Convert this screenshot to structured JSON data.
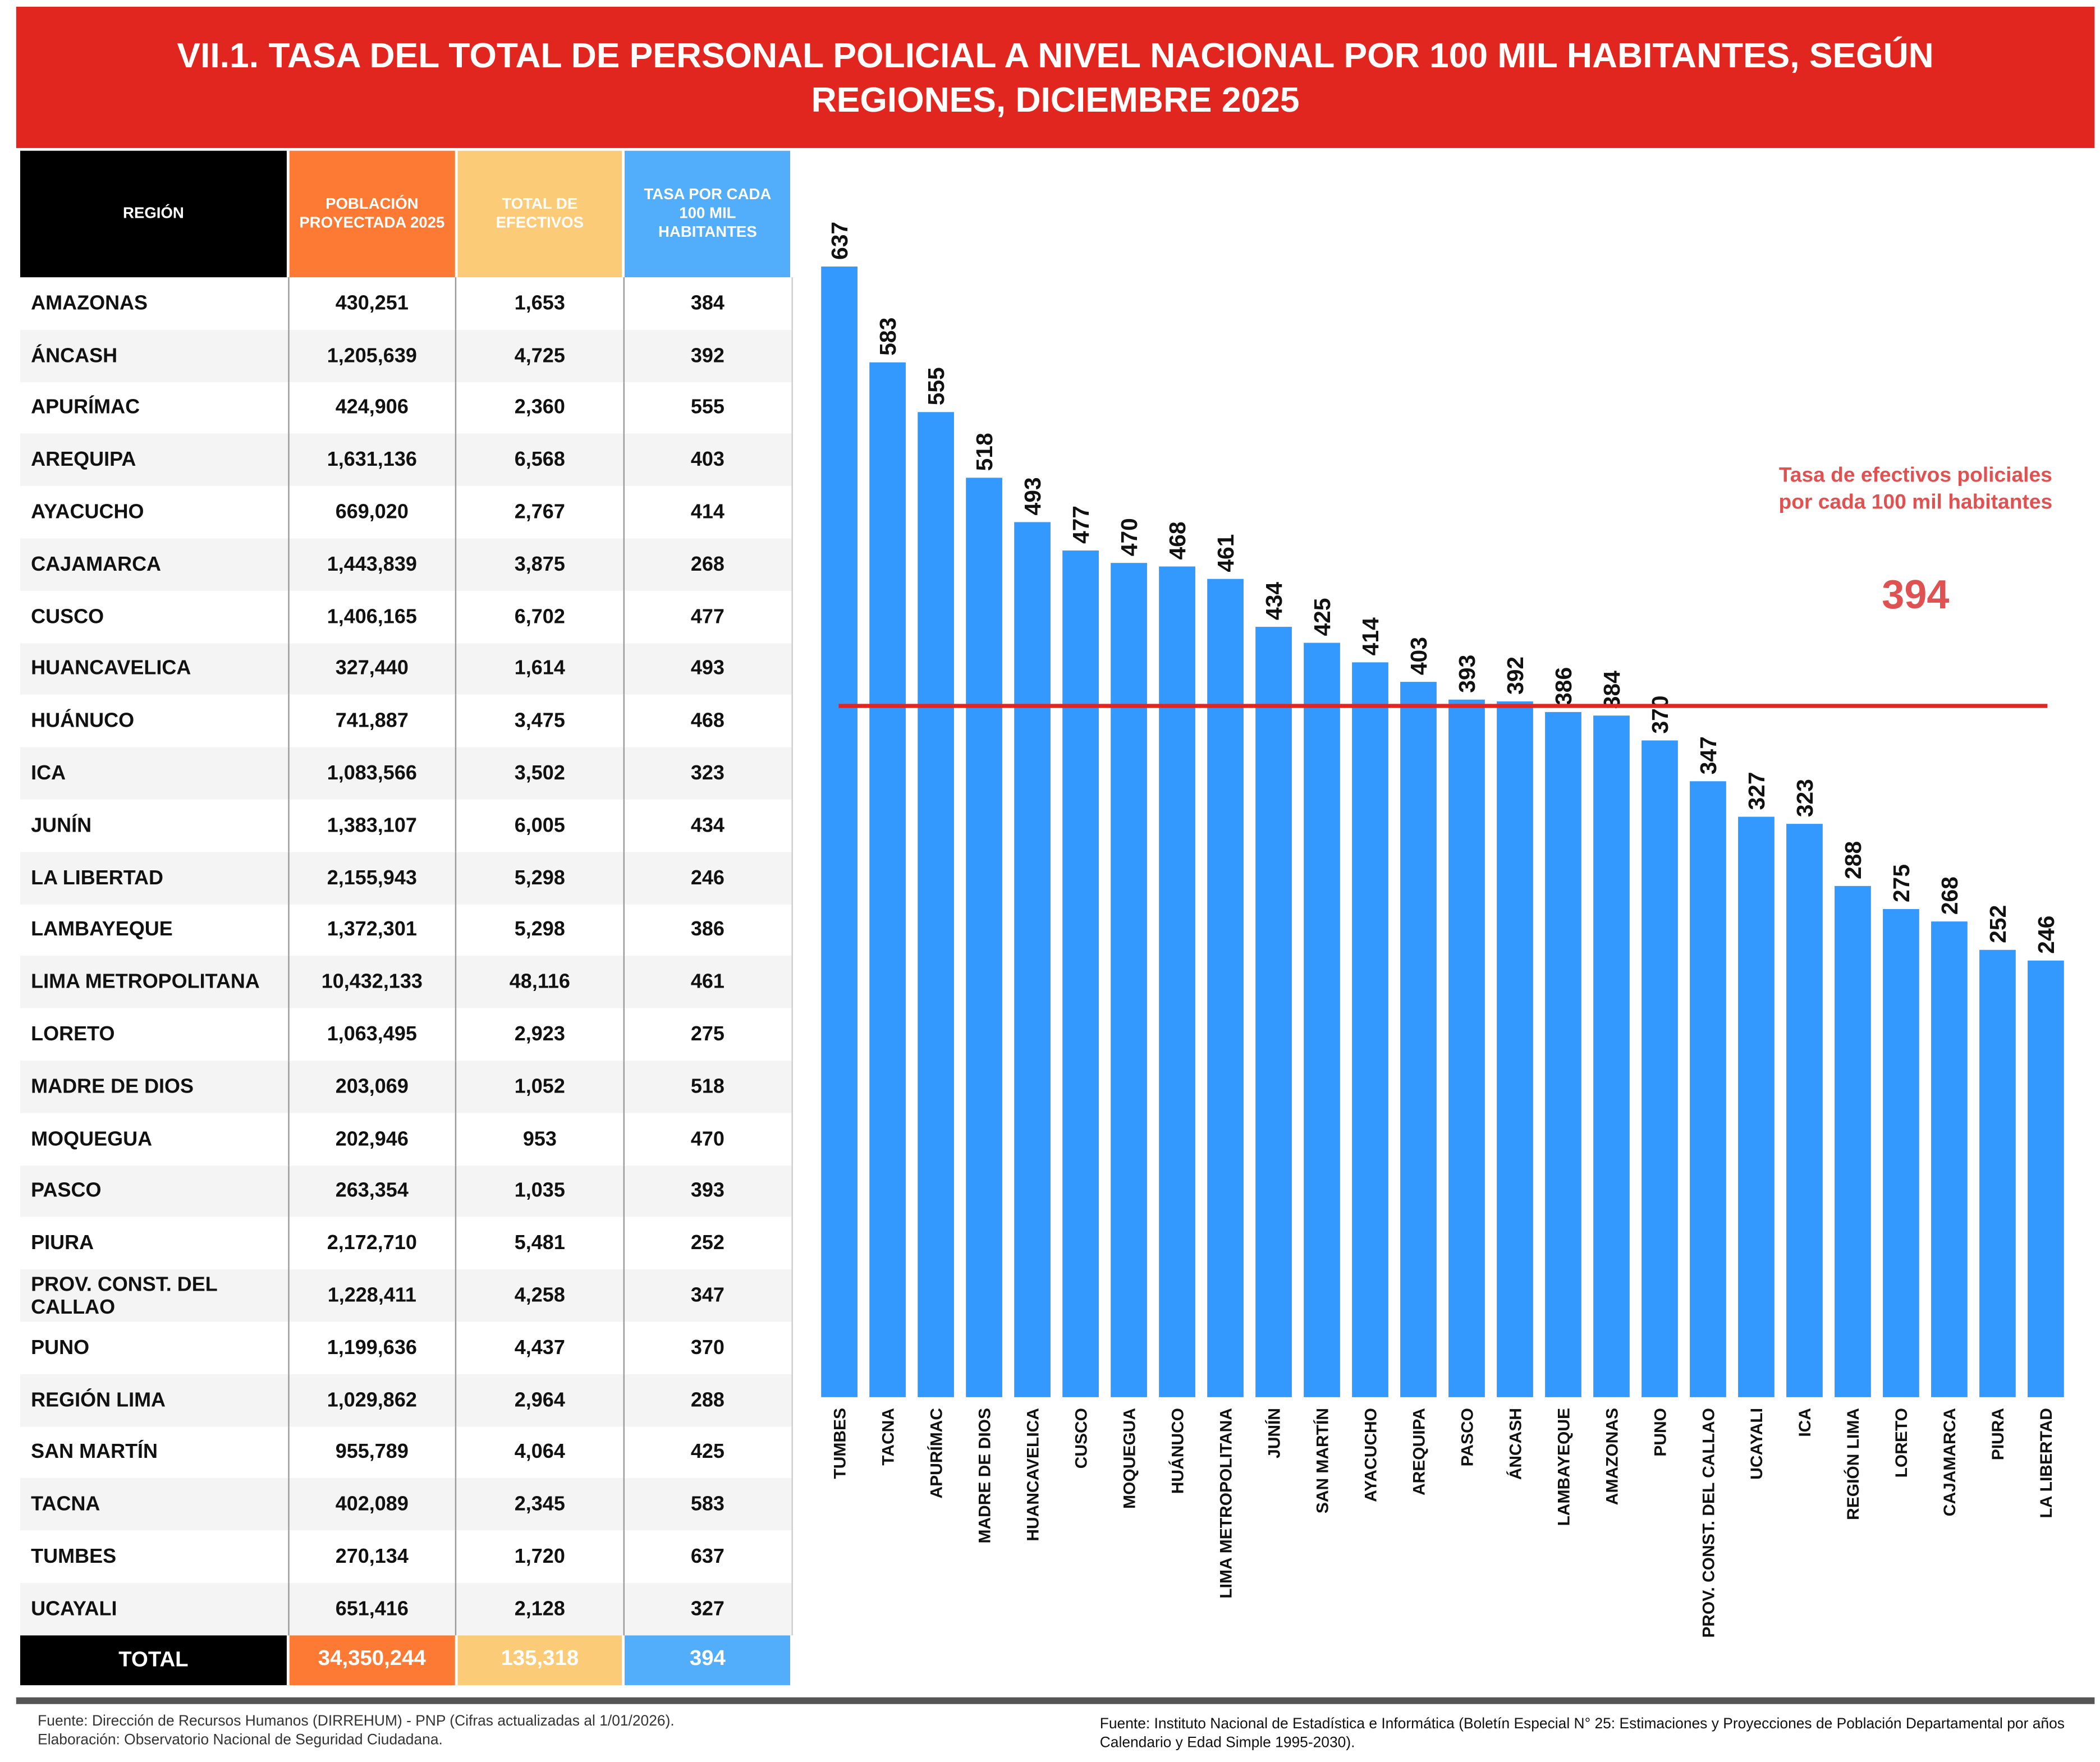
{
  "title": "VII.1. TASA DEL TOTAL DE PERSONAL POLICIAL A NIVEL NACIONAL POR 100 MIL HABITANTES, SEGÚN REGIONES, DICIEMBRE 2025",
  "table": {
    "headers": [
      "REGIÓN",
      "POBLACIÓN PROYECTADA 2025",
      "TOTAL DE EFECTIVOS",
      "TASA POR CADA 100 MIL HABITANTES"
    ],
    "rows": [
      [
        "AMAZONAS",
        "430,251",
        "1,653",
        "384"
      ],
      [
        "ÁNCASH",
        "1,205,639",
        "4,725",
        "392"
      ],
      [
        "APURÍMAC",
        "424,906",
        "2,360",
        "555"
      ],
      [
        "AREQUIPA",
        "1,631,136",
        "6,568",
        "403"
      ],
      [
        "AYACUCHO",
        "669,020",
        "2,767",
        "414"
      ],
      [
        "CAJAMARCA",
        "1,443,839",
        "3,875",
        "268"
      ],
      [
        "CUSCO",
        "1,406,165",
        "6,702",
        "477"
      ],
      [
        "HUANCAVELICA",
        "327,440",
        "1,614",
        "493"
      ],
      [
        "HUÁNUCO",
        "741,887",
        "3,475",
        "468"
      ],
      [
        "ICA",
        "1,083,566",
        "3,502",
        "323"
      ],
      [
        "JUNÍN",
        "1,383,107",
        "6,005",
        "434"
      ],
      [
        "LA LIBERTAD",
        "2,155,943",
        "5,298",
        "246"
      ],
      [
        "LAMBAYEQUE",
        "1,372,301",
        "5,298",
        "386"
      ],
      [
        "LIMA METROPOLITANA",
        "10,432,133",
        "48,116",
        "461"
      ],
      [
        "LORETO",
        "1,063,495",
        "2,923",
        "275"
      ],
      [
        "MADRE DE DIOS",
        "203,069",
        "1,052",
        "518"
      ],
      [
        "MOQUEGUA",
        "202,946",
        "953",
        "470"
      ],
      [
        "PASCO",
        "263,354",
        "1,035",
        "393"
      ],
      [
        "PIURA",
        "2,172,710",
        "5,481",
        "252"
      ],
      [
        "PROV. CONST. DEL CALLAO",
        "1,228,411",
        "4,258",
        "347"
      ],
      [
        "PUNO",
        "1,199,636",
        "4,437",
        "370"
      ],
      [
        "REGIÓN LIMA",
        "1,029,862",
        "2,964",
        "288"
      ],
      [
        "SAN MARTÍN",
        "955,789",
        "4,064",
        "425"
      ],
      [
        "TACNA",
        "402,089",
        "2,345",
        "583"
      ],
      [
        "TUMBES",
        "270,134",
        "1,720",
        "637"
      ],
      [
        "UCAYALI",
        "651,416",
        "2,128",
        "327"
      ]
    ],
    "total": [
      "TOTAL",
      "34,350,244",
      "135,318",
      "394"
    ]
  },
  "chart_data": {
    "type": "bar",
    "title": "",
    "categories": [
      "TUMBES",
      "TACNA",
      "APURÍMAC",
      "MADRE DE DIOS",
      "HUANCAVELICA",
      "CUSCO",
      "MOQUEGUA",
      "HUÁNUCO",
      "LIMA METROPOLITANA",
      "JUNÍN",
      "SAN MARTÍN",
      "AYACUCHO",
      "AREQUIPA",
      "PASCO",
      "ÁNCASH",
      "LAMBAYEQUE",
      "AMAZONAS",
      "PUNO",
      "PROV. CONST. DEL CALLAO",
      "UCAYALI",
      "ICA",
      "REGIÓN LIMA",
      "LORETO",
      "CAJAMARCA",
      "PIURA",
      "LA LIBERTAD"
    ],
    "values": [
      637,
      583,
      555,
      518,
      493,
      477,
      470,
      468,
      461,
      434,
      425,
      414,
      403,
      393,
      392,
      386,
      384,
      370,
      347,
      327,
      323,
      288,
      275,
      268,
      252,
      246
    ],
    "reference_line": {
      "label": "Tasa de efectivos policiales por cada 100 mil habitantes",
      "value": 394,
      "value_label": "394"
    },
    "ylim": [
      0,
      637
    ],
    "grid": false,
    "bar_color": "#3399ff",
    "line_color": "#e1261f"
  },
  "footer": {
    "left_1": "Fuente: Dirección de Recursos Humanos (DIRREHUM) - PNP (Cifras actualizadas al 1/01/2026).",
    "left_2": "Elaboración: Observatorio Nacional de Seguridad Ciudadana.",
    "right": "Fuente: Instituto Nacional de Estadística e Informática (Boletín Especial N° 25: Estimaciones y Proyecciones de Población Departamental por años Calendario y Edad Simple  1995-2030)."
  }
}
